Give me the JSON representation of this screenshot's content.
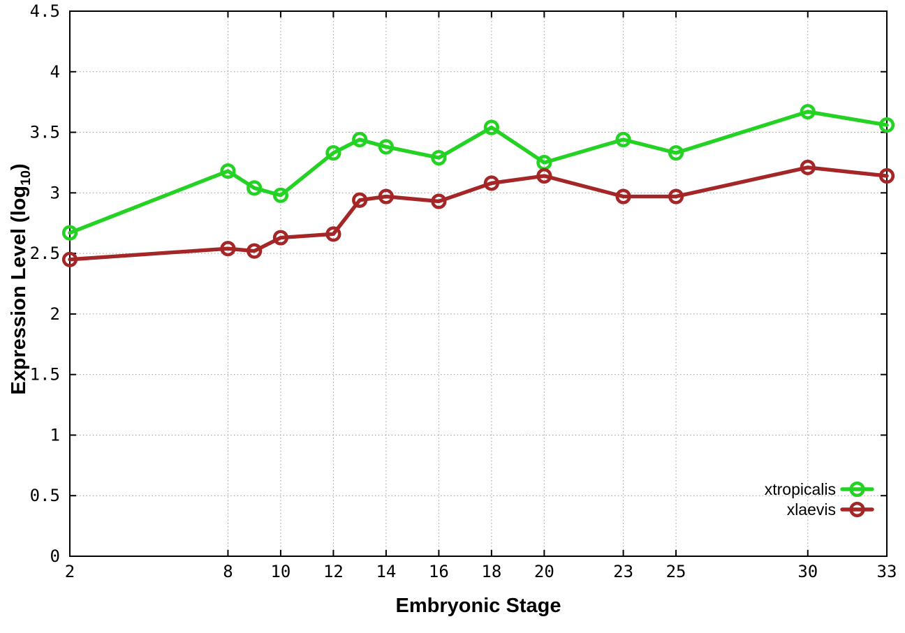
{
  "chart_data": {
    "type": "line",
    "title": "",
    "xlabel": "Embryonic Stage",
    "ylabel": "Expression Level (log10)",
    "ylabel_parts": [
      "Expression Level (log",
      "10",
      ")"
    ],
    "x": [
      2,
      8,
      9,
      10,
      12,
      13,
      14,
      16,
      18,
      20,
      23,
      25,
      30,
      33
    ],
    "series": [
      {
        "name": "xtropicalis",
        "color": "#23d223",
        "values": [
          2.67,
          3.18,
          3.04,
          2.98,
          3.33,
          3.44,
          3.38,
          3.29,
          3.54,
          3.25,
          3.44,
          3.33,
          3.67,
          3.56
        ]
      },
      {
        "name": "xlaevis",
        "color": "#a42626",
        "values": [
          2.45,
          2.54,
          2.52,
          2.63,
          2.66,
          2.94,
          2.97,
          2.93,
          3.08,
          3.14,
          2.97,
          2.97,
          3.21,
          3.14
        ]
      }
    ],
    "x_ticks": [
      2,
      8,
      10,
      12,
      14,
      16,
      18,
      20,
      23,
      25,
      30,
      33
    ],
    "x_tick_labels": [
      "2",
      "8",
      "10",
      "12",
      "14",
      "16",
      "18",
      "20",
      "23",
      "25",
      "30",
      "33"
    ],
    "y_ticks": [
      0,
      0.5,
      1,
      1.5,
      2,
      2.5,
      3,
      3.5,
      4,
      4.5
    ],
    "y_tick_labels": [
      "0",
      "0.5",
      "1",
      "1.5",
      "2",
      "2.5",
      "3",
      "3.5",
      "4",
      "4.5"
    ],
    "xlim": [
      2,
      33
    ],
    "ylim": [
      0,
      4.5
    ],
    "grid": true,
    "marker": "open-circle",
    "legend_position": "bottom-right",
    "colors": {
      "border": "#000000",
      "grid": "#999999",
      "tick_text": "#000000",
      "background": "#ffffff"
    }
  }
}
